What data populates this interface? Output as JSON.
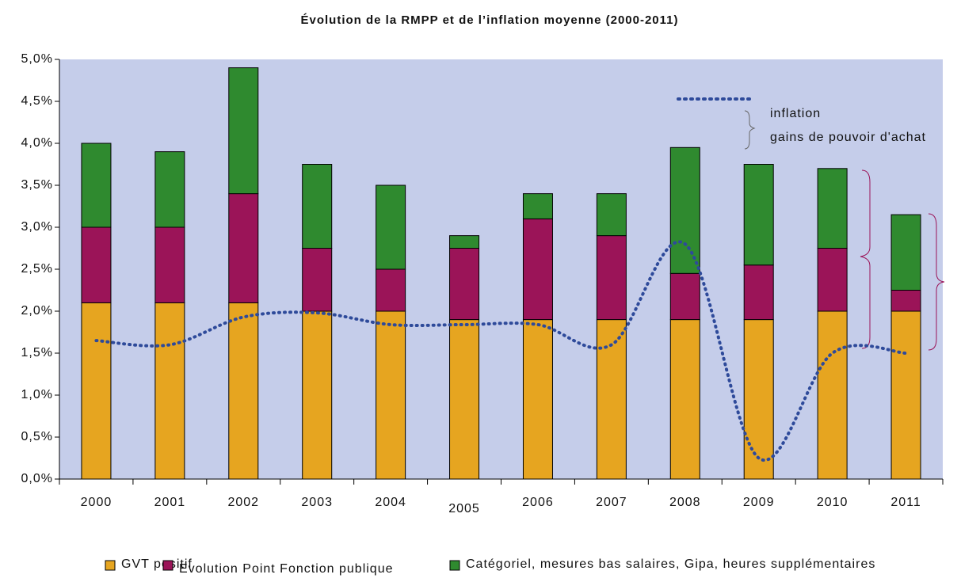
{
  "chart_data": {
    "type": "bar",
    "title": "Évolution de la RMPP et de l’inflation moyenne (2000-2011)",
    "categories": [
      "2000",
      "2001",
      "2002",
      "2003",
      "2004",
      "2005",
      "2006",
      "2007",
      "2008",
      "2009",
      "2010",
      "2011"
    ],
    "series": [
      {
        "name": "GVT positif",
        "color": "#e6a520",
        "values": [
          2.1,
          2.1,
          2.1,
          2.0,
          2.0,
          1.9,
          1.9,
          1.9,
          1.9,
          1.9,
          2.0,
          2.0
        ]
      },
      {
        "name": "Evolution Point Fonction publique",
        "color": "#9b1458",
        "values": [
          0.9,
          0.9,
          1.3,
          0.75,
          0.5,
          0.85,
          1.2,
          1.0,
          0.55,
          0.65,
          0.75,
          0.25
        ]
      },
      {
        "name": "Catégoriel, mesures bas salaires, Gipa, heures supplémentaires",
        "color": "#2f8a2f",
        "values": [
          1.0,
          0.9,
          1.5,
          1.0,
          1.0,
          0.15,
          0.3,
          0.5,
          1.5,
          1.2,
          0.95,
          0.9
        ]
      }
    ],
    "line_series": {
      "name": "inflation",
      "color": "#2e4a9a",
      "values": [
        1.65,
        1.6,
        1.93,
        1.98,
        1.84,
        1.84,
        1.84,
        1.6,
        2.8,
        0.25,
        1.5,
        1.5
      ]
    },
    "annotation": "gains de pouvoir d'achat",
    "ylim": [
      0,
      5
    ],
    "yticks": [
      {
        "value": 0,
        "label": "0,0%"
      },
      {
        "value": 0.5,
        "label": "0,5%"
      },
      {
        "value": 1,
        "label": "1,0%"
      },
      {
        "value": 1.5,
        "label": "1,5%"
      },
      {
        "value": 2,
        "label": "2,0%"
      },
      {
        "value": 2.5,
        "label": "2,5%"
      },
      {
        "value": 3,
        "label": "3,0%"
      },
      {
        "value": 3.5,
        "label": "3,5%"
      },
      {
        "value": 4,
        "label": "4,0%"
      },
      {
        "value": 4.5,
        "label": "4,5%"
      },
      {
        "value": 5,
        "label": "5,0%"
      }
    ],
    "grid": false
  }
}
